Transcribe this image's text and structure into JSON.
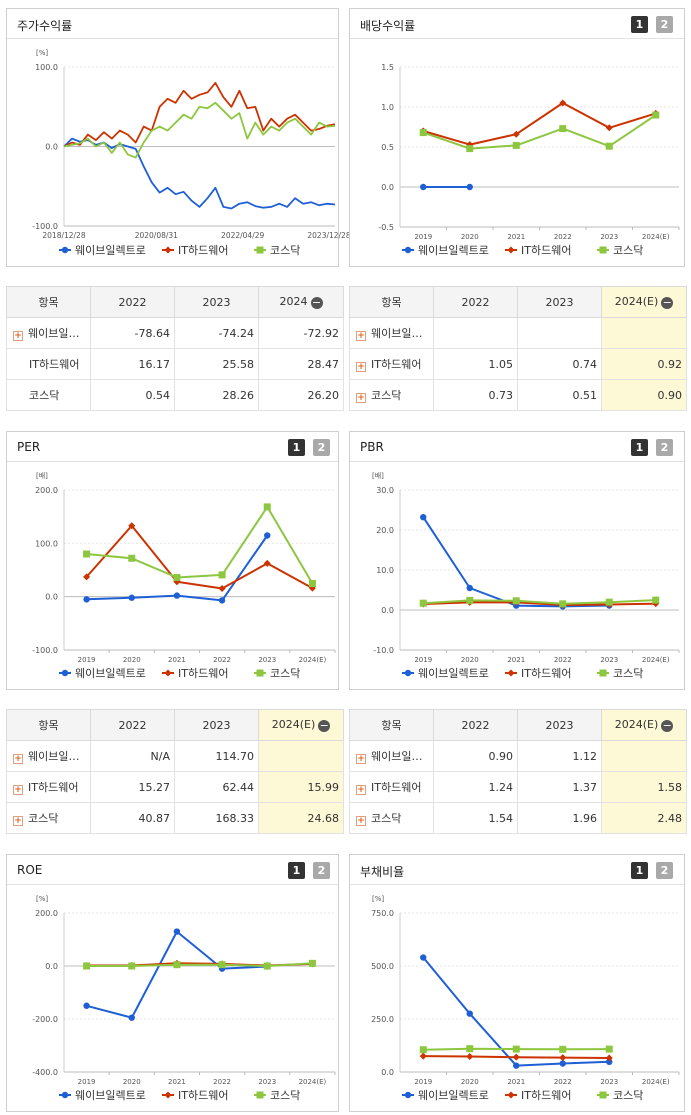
{
  "colors": {
    "wave": "#1f5fd6",
    "it": "#cc3300",
    "kosdaq": "#8dc63f"
  },
  "btn": {
    "one": "1",
    "two": "2"
  },
  "panels": {
    "stock": {
      "title": "주가수익률",
      "unit": "[%]"
    },
    "dividend": {
      "title": "배당수익률"
    },
    "per": {
      "title": "PER",
      "unit": "[배]"
    },
    "pbr": {
      "title": "PBR",
      "unit": "[배]"
    },
    "roe": {
      "title": "ROE",
      "unit": "[%]"
    },
    "debt": {
      "title": "부채비율",
      "unit": "[%]"
    }
  },
  "legend": {
    "wave": "웨이브일렉트로",
    "it": "IT하드웨어",
    "kosdaq": "코스닥"
  },
  "tables": {
    "stock": {
      "headers": [
        "항목",
        "2022",
        "2023",
        "2024"
      ],
      "rows": [
        {
          "name": "웨이브일…",
          "plus": true,
          "v": [
            "-78.64",
            "-74.24",
            "-72.92"
          ]
        },
        {
          "name": "IT하드웨어",
          "plus": false,
          "v": [
            "16.17",
            "25.58",
            "28.47"
          ]
        },
        {
          "name": "코스닥",
          "plus": false,
          "v": [
            "0.54",
            "28.26",
            "26.20"
          ]
        }
      ]
    },
    "dividend": {
      "headers": [
        "항목",
        "2022",
        "2023",
        "2024(E)"
      ],
      "rows": [
        {
          "name": "웨이브일…",
          "plus": true,
          "v": [
            "",
            "",
            ""
          ]
        },
        {
          "name": "IT하드웨어",
          "plus": true,
          "v": [
            "1.05",
            "0.74",
            "0.92"
          ]
        },
        {
          "name": "코스닥",
          "plus": true,
          "v": [
            "0.73",
            "0.51",
            "0.90"
          ]
        }
      ]
    },
    "per": {
      "headers": [
        "항목",
        "2022",
        "2023",
        "2024(E)"
      ],
      "rows": [
        {
          "name": "웨이브일…",
          "plus": true,
          "v": [
            "N/A",
            "114.70",
            ""
          ]
        },
        {
          "name": "IT하드웨어",
          "plus": true,
          "v": [
            "15.27",
            "62.44",
            "15.99"
          ]
        },
        {
          "name": "코스닥",
          "plus": true,
          "v": [
            "40.87",
            "168.33",
            "24.68"
          ]
        }
      ]
    },
    "pbr": {
      "headers": [
        "항목",
        "2022",
        "2023",
        "2024(E)"
      ],
      "rows": [
        {
          "name": "웨이브일…",
          "plus": true,
          "v": [
            "0.90",
            "1.12",
            ""
          ]
        },
        {
          "name": "IT하드웨어",
          "plus": true,
          "v": [
            "1.24",
            "1.37",
            "1.58"
          ]
        },
        {
          "name": "코스닥",
          "plus": true,
          "v": [
            "1.54",
            "1.96",
            "2.48"
          ]
        }
      ]
    }
  },
  "chart_data": [
    {
      "id": "stock",
      "type": "line",
      "title": "주가수익률",
      "ylabel": "[%]",
      "ylim": [
        -100,
        100
      ],
      "yticks": [
        "100.0",
        "0.0",
        "-100.0"
      ],
      "xticks": [
        "2018/12/28",
        "2020/08/31",
        "2022/04/29",
        "2023/12/28"
      ],
      "series": [
        {
          "name": "웨이브일렉트로",
          "values": [
            0,
            10,
            6,
            8,
            2,
            5,
            -2,
            3,
            0,
            -3,
            -25,
            -45,
            -58,
            -52,
            -60,
            -57,
            -68,
            -76,
            -65,
            -52,
            -76,
            -78,
            -72,
            -70,
            -75,
            -77,
            -76,
            -72,
            -76,
            -65,
            -72,
            -70,
            -74,
            -72,
            -73
          ]
        },
        {
          "name": "IT하드웨어",
          "values": [
            0,
            5,
            2,
            15,
            8,
            18,
            10,
            20,
            15,
            5,
            25,
            20,
            50,
            60,
            55,
            70,
            60,
            65,
            68,
            80,
            62,
            50,
            70,
            48,
            50,
            20,
            35,
            25,
            35,
            40,
            30,
            20,
            22,
            26,
            28
          ]
        },
        {
          "name": "코스닥",
          "values": [
            0,
            2,
            4,
            10,
            0,
            5,
            -8,
            5,
            -10,
            -14,
            5,
            20,
            25,
            20,
            30,
            40,
            35,
            50,
            48,
            55,
            45,
            35,
            42,
            10,
            30,
            15,
            25,
            20,
            30,
            35,
            25,
            15,
            30,
            25,
            26
          ]
        }
      ]
    },
    {
      "id": "dividend",
      "type": "line",
      "title": "배당수익률",
      "ylim": [
        -0.5,
        1.5
      ],
      "yticks": [
        "1.5",
        "1.0",
        "0.5",
        "0.0",
        "-0.5"
      ],
      "categories": [
        "2019",
        "2020",
        "2021",
        "2022",
        "2023",
        "2024(E)"
      ],
      "series": [
        {
          "name": "웨이브일렉트로",
          "values": [
            0.0,
            0.0,
            null,
            null,
            null,
            null
          ]
        },
        {
          "name": "IT하드웨어",
          "values": [
            0.7,
            0.53,
            0.66,
            1.05,
            0.74,
            0.92
          ]
        },
        {
          "name": "코스닥",
          "values": [
            0.68,
            0.48,
            0.52,
            0.73,
            0.51,
            0.9
          ]
        }
      ]
    },
    {
      "id": "per",
      "type": "line",
      "title": "PER",
      "ylabel": "[배]",
      "ylim": [
        -100,
        200
      ],
      "yticks": [
        "200.0",
        "100.0",
        "0.0",
        "-100.0"
      ],
      "categories": [
        "2019",
        "2020",
        "2021",
        "2022",
        "2023",
        "2024(E)"
      ],
      "series": [
        {
          "name": "웨이브일렉트로",
          "values": [
            -5,
            -2,
            2,
            -7,
            114.7,
            null
          ]
        },
        {
          "name": "IT하드웨어",
          "values": [
            37,
            133,
            28,
            15.27,
            62.44,
            15.99
          ]
        },
        {
          "name": "코스닥",
          "values": [
            80,
            72,
            36,
            40.87,
            168.33,
            24.68
          ]
        }
      ]
    },
    {
      "id": "pbr",
      "type": "line",
      "title": "PBR",
      "ylabel": "[배]",
      "ylim": [
        -10,
        30
      ],
      "yticks": [
        "30.0",
        "20.0",
        "10.0",
        "0.0",
        "-10.0"
      ],
      "categories": [
        "2019",
        "2020",
        "2021",
        "2022",
        "2023",
        "2024(E)"
      ],
      "series": [
        {
          "name": "웨이브일렉트로",
          "values": [
            23.2,
            5.5,
            1.1,
            0.9,
            1.12,
            null
          ]
        },
        {
          "name": "IT하드웨어",
          "values": [
            1.5,
            1.9,
            1.9,
            1.24,
            1.37,
            1.58
          ]
        },
        {
          "name": "코스닥",
          "values": [
            1.7,
            2.4,
            2.3,
            1.54,
            1.96,
            2.48
          ]
        }
      ]
    },
    {
      "id": "roe",
      "type": "line",
      "title": "ROE",
      "ylabel": "[%]",
      "ylim": [
        -400,
        200
      ],
      "yticks": [
        "200.0",
        "0.0",
        "-200.0",
        "-400.0"
      ],
      "categories": [
        "2019",
        "2020",
        "2021",
        "2022",
        "2023",
        "2024(E)"
      ],
      "series": [
        {
          "name": "웨이브일렉트로",
          "values": [
            -150,
            -195,
            130,
            -10,
            -2,
            null
          ]
        },
        {
          "name": "IT하드웨어",
          "values": [
            2,
            2,
            10,
            8,
            2,
            8
          ]
        },
        {
          "name": "코스닥",
          "values": [
            0,
            0,
            5,
            5,
            0,
            10
          ]
        }
      ]
    },
    {
      "id": "debt",
      "type": "line",
      "title": "부채비율",
      "ylabel": "[%]",
      "ylim": [
        0,
        750
      ],
      "yticks": [
        "750.0",
        "500.0",
        "250.0",
        "0.0"
      ],
      "categories": [
        "2019",
        "2020",
        "2021",
        "2022",
        "2023",
        "2024(E)"
      ],
      "series": [
        {
          "name": "웨이브일렉트로",
          "values": [
            540,
            275,
            30,
            40,
            48,
            null
          ]
        },
        {
          "name": "IT하드웨어",
          "values": [
            75,
            73,
            70,
            68,
            66,
            null
          ]
        },
        {
          "name": "코스닥",
          "values": [
            105,
            110,
            108,
            107,
            108,
            null
          ]
        }
      ]
    }
  ]
}
